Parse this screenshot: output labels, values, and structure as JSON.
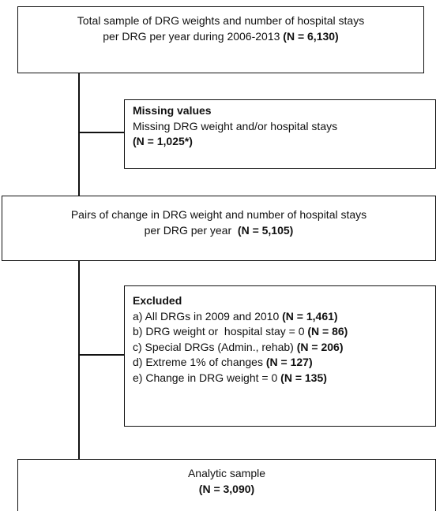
{
  "nodes": [
    {
      "lines": [
        {
          "text": "Total sample of DRG weights and number of hospital stays"
        },
        {
          "text": "per DRG per year during 2006-2013 ",
          "bold": "(N = 6,130)"
        }
      ]
    },
    {
      "title": "Missing values",
      "lines": [
        {
          "text": "Missing DRG weight and/or hospital stays"
        },
        {
          "bold": "(N = 1,025*)"
        }
      ]
    },
    {
      "lines": [
        {
          "text": "Pairs of change in DRG weight and number of hospital stays"
        },
        {
          "text": "per DRG per year  ",
          "bold": "(N = 5,105)"
        }
      ]
    },
    {
      "title": "Excluded",
      "lines": [
        {
          "text": "a) All DRGs in 2009 and 2010 ",
          "bold": "(N = 1,461)"
        },
        {
          "text": "b) DRG weight or  hospital stay = 0 ",
          "bold": "(N = 86)"
        },
        {
          "text": "c) Special DRGs (Admin., rehab) ",
          "bold": "(N = 206)"
        },
        {
          "text": "d) Extreme 1% of changes ",
          "bold": "(N = 127)"
        },
        {
          "text": "e) Change in DRG weight = 0 ",
          "bold": "(N = 135)"
        }
      ]
    },
    {
      "lines": [
        {
          "text": "Analytic sample"
        },
        {
          "bold": "(N = 3,090)"
        }
      ]
    }
  ]
}
